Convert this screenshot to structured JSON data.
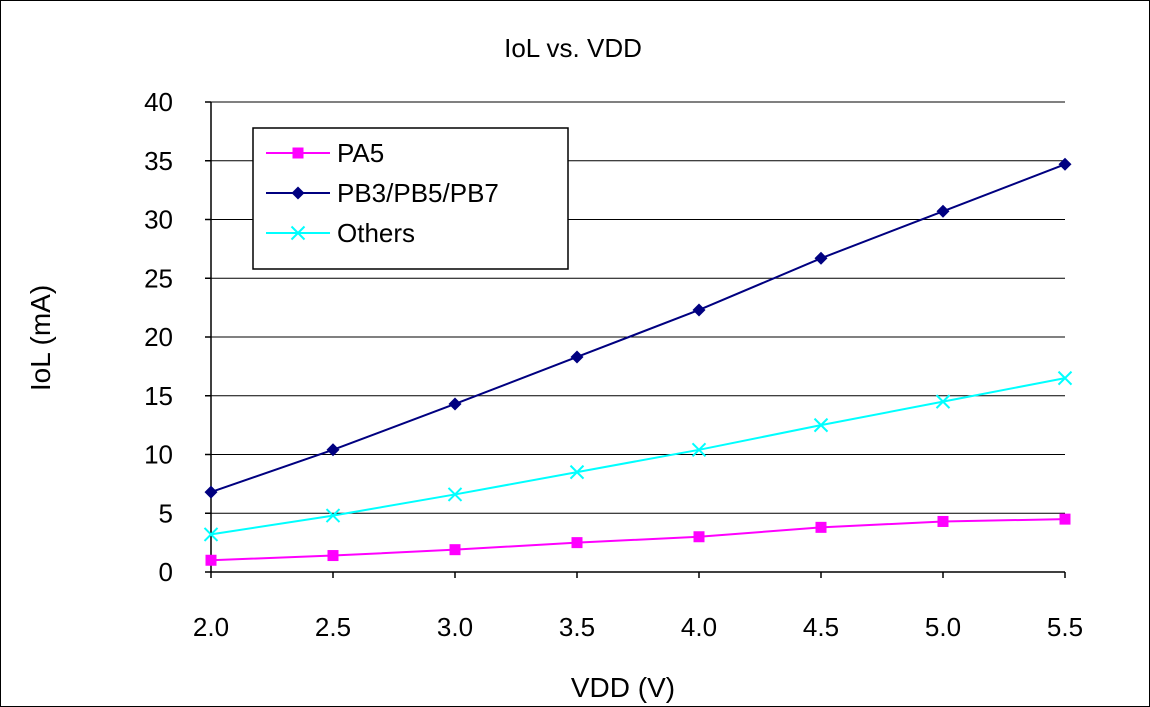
{
  "chart_data": {
    "type": "line",
    "title": "IoL vs. VDD",
    "xlabel": "VDD (V)",
    "ylabel": "IoL (mA)",
    "x": [
      2.0,
      2.5,
      3.0,
      3.5,
      4.0,
      4.5,
      5.0,
      5.5
    ],
    "x_tick_labels": [
      "2.0",
      "2.5",
      "3.0",
      "3.5",
      "4.0",
      "4.5",
      "5.0",
      "5.5"
    ],
    "xlim": [
      2.0,
      5.5
    ],
    "ylim": [
      0,
      40
    ],
    "y_ticks": [
      0,
      5,
      10,
      15,
      20,
      25,
      30,
      35,
      40
    ],
    "y_tick_labels": [
      "0",
      "5",
      "10",
      "15",
      "20",
      "25",
      "30",
      "35",
      "40"
    ],
    "grid": "horizontal",
    "legend_position": "top-left",
    "series": [
      {
        "name": "PA5",
        "color": "#ff00ff",
        "marker": "square",
        "values": [
          1.0,
          1.4,
          1.9,
          2.5,
          3.0,
          3.8,
          4.3,
          4.5
        ]
      },
      {
        "name": "PB3/PB5/PB7",
        "color": "#000080",
        "marker": "diamond",
        "values": [
          6.8,
          10.4,
          14.3,
          18.3,
          22.3,
          26.7,
          30.7,
          34.7
        ]
      },
      {
        "name": "Others",
        "color": "#00ffff",
        "marker": "x",
        "values": [
          3.2,
          4.8,
          6.6,
          8.5,
          10.4,
          12.5,
          14.5,
          16.5
        ]
      }
    ]
  }
}
